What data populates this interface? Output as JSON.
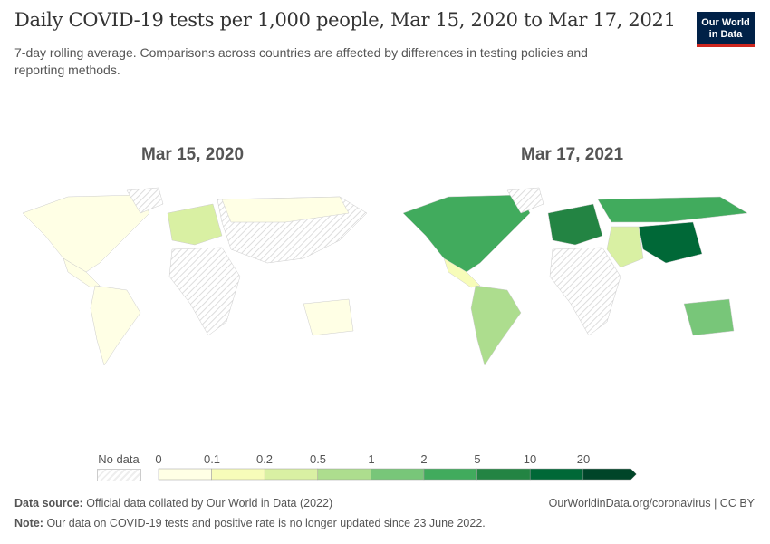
{
  "header": {
    "title": "Daily COVID-19 tests per 1,000 people, Mar 15, 2020 to Mar 17, 2021",
    "subtitle": "7-day rolling average. Comparisons across countries are affected by differences in testing policies and reporting methods.",
    "logo": "Our World in Data"
  },
  "maps": [
    {
      "date": "Mar 15, 2020"
    },
    {
      "date": "Mar 17, 2021"
    }
  ],
  "legend": {
    "no_data": "No data",
    "ticks": [
      "0",
      "0.1",
      "0.2",
      "0.5",
      "1",
      "2",
      "5",
      "10",
      "20"
    ],
    "colors": [
      "#ffffe5",
      "#f7fcb9",
      "#d9f0a3",
      "#addd8e",
      "#78c679",
      "#41ab5d",
      "#238443",
      "#006837",
      "#004529"
    ]
  },
  "footer": {
    "source_label": "Data source:",
    "source": "Official data collated by Our World in Data (2022)",
    "url": "OurWorldinData.org/coronavirus | CC BY",
    "note_label": "Note:",
    "note": "Our data on COVID-19 tests and positive rate is no longer updated since 23 June 2022."
  }
}
